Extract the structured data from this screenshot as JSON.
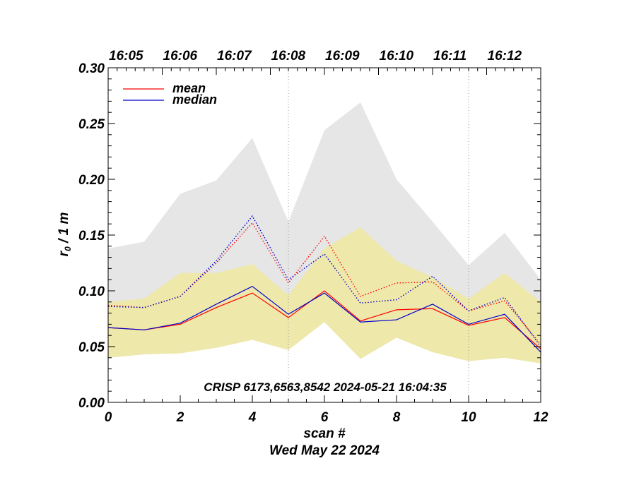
{
  "chart_data": {
    "type": "line",
    "xlabel": "scan #",
    "date_label": "Wed May 22 2024",
    "ylabel_main": "r",
    "ylabel_sub": "0",
    "ylabel_rest": " / 1 m",
    "annotation": "CRISP 6173,6563,8542 2024-05-21 16:04:35",
    "xlim": [
      0,
      12
    ],
    "ylim": [
      0,
      0.3
    ],
    "x_ticks": [
      {
        "value": 0,
        "label": "0"
      },
      {
        "value": 2,
        "label": "2"
      },
      {
        "value": 4,
        "label": "4"
      },
      {
        "value": 6,
        "label": "6"
      },
      {
        "value": 8,
        "label": "8"
      },
      {
        "value": 10,
        "label": "10"
      },
      {
        "value": 12,
        "label": "12"
      }
    ],
    "y_ticks": [
      {
        "value": 0.0,
        "label": "0.00"
      },
      {
        "value": 0.05,
        "label": "0.05"
      },
      {
        "value": 0.1,
        "label": "0.10"
      },
      {
        "value": 0.15,
        "label": "0.15"
      },
      {
        "value": 0.2,
        "label": "0.20"
      },
      {
        "value": 0.25,
        "label": "0.25"
      },
      {
        "value": 0.3,
        "label": "0.30"
      }
    ],
    "top_ticks": [
      {
        "value": 0.0,
        "label": "16:05"
      },
      {
        "value": 1.5,
        "label": "16:06"
      },
      {
        "value": 3.0,
        "label": "16:07"
      },
      {
        "value": 4.5,
        "label": "16:08"
      },
      {
        "value": 6.0,
        "label": "16:09"
      },
      {
        "value": 7.5,
        "label": "16:10"
      },
      {
        "value": 9.0,
        "label": "16:11"
      },
      {
        "value": 10.5,
        "label": "16:12"
      }
    ],
    "vlines": [
      5,
      10
    ],
    "x": [
      0,
      1,
      2,
      3,
      4,
      5,
      6,
      7,
      8,
      9,
      10,
      11,
      12
    ],
    "bands": [
      {
        "name": "outer_range",
        "color": "#e6e6e6",
        "lower": [
          0.04,
          0.043,
          0.044,
          0.049,
          0.056,
          0.047,
          0.072,
          0.039,
          0.058,
          0.045,
          0.037,
          0.04,
          0.035
        ],
        "upper": [
          0.138,
          0.144,
          0.187,
          0.199,
          0.237,
          0.162,
          0.244,
          0.269,
          0.2,
          0.162,
          0.123,
          0.152,
          0.11
        ]
      },
      {
        "name": "inner_range",
        "color": "#eee8aa",
        "lower": [
          0.04,
          0.043,
          0.044,
          0.049,
          0.056,
          0.047,
          0.072,
          0.039,
          0.058,
          0.045,
          0.037,
          0.04,
          0.035
        ],
        "upper": [
          0.09,
          0.093,
          0.116,
          0.116,
          0.124,
          0.096,
          0.138,
          0.157,
          0.127,
          0.112,
          0.093,
          0.116,
          0.09
        ]
      }
    ],
    "series": [
      {
        "name": "mean",
        "color": "#ff0000",
        "dash": false,
        "values": [
          0.067,
          0.065,
          0.07,
          0.085,
          0.098,
          0.076,
          0.1,
          0.073,
          0.083,
          0.084,
          0.069,
          0.076,
          0.048
        ]
      },
      {
        "name": "median",
        "color": "#0000cc",
        "dash": false,
        "values": [
          0.067,
          0.065,
          0.071,
          0.088,
          0.104,
          0.079,
          0.098,
          0.072,
          0.074,
          0.088,
          0.07,
          0.079,
          0.045
        ]
      },
      {
        "name": "",
        "color": "#ff0000",
        "dash": true,
        "values": [
          0.087,
          0.085,
          0.095,
          0.125,
          0.161,
          0.107,
          0.149,
          0.095,
          0.107,
          0.108,
          0.082,
          0.091,
          0.052
        ]
      },
      {
        "name": "",
        "color": "#0000cc",
        "dash": true,
        "values": [
          0.086,
          0.085,
          0.095,
          0.127,
          0.167,
          0.11,
          0.133,
          0.089,
          0.092,
          0.113,
          0.082,
          0.094,
          0.05
        ]
      }
    ],
    "legend": [
      {
        "label": "mean",
        "color": "#ff0000"
      },
      {
        "label": "median",
        "color": "#0000cc"
      }
    ],
    "legend_placement": "top-left",
    "grid": false
  }
}
